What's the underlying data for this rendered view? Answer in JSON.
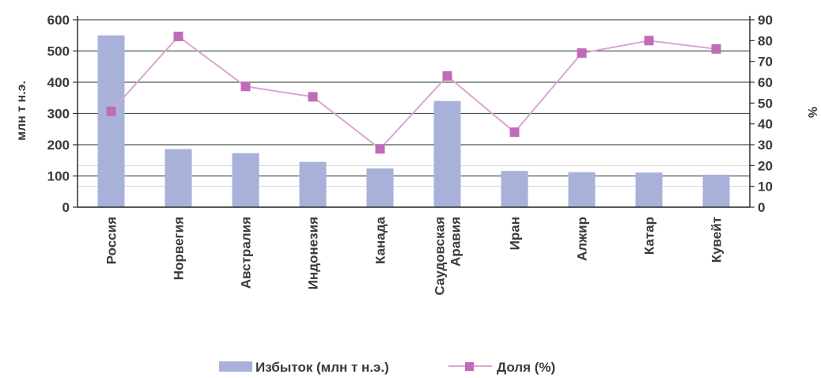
{
  "chart_data": {
    "type": "bar",
    "categories": [
      "Россия",
      "Норвегия",
      "Австралия",
      "Индонезия",
      "Канада",
      "Саудовская Аравия",
      "Иран",
      "Алжир",
      "Катар",
      "Кувейт"
    ],
    "category_lines": [
      [
        "Россия"
      ],
      [
        "Норвегия"
      ],
      [
        "Австралия"
      ],
      [
        "Индонезия"
      ],
      [
        "Канада"
      ],
      [
        "Саудовская",
        "Аравия"
      ],
      [
        "Иран"
      ],
      [
        "Алжир"
      ],
      [
        "Катар"
      ],
      [
        "Кувейт"
      ]
    ],
    "series": [
      {
        "name": "Избыток (млн т н.э.)",
        "type": "bar",
        "axis": "left",
        "values": [
          550,
          186,
          173,
          145,
          124,
          340,
          116,
          112,
          111,
          104
        ]
      },
      {
        "name": "Доля (%)",
        "type": "line",
        "axis": "right",
        "values": [
          46,
          82,
          58,
          53,
          28,
          63,
          36,
          74,
          80,
          76
        ]
      }
    ],
    "ylabel": "млн т н.э.",
    "y2label": "%",
    "ylim": [
      0,
      600
    ],
    "yticks": [
      "0",
      "100",
      "200",
      "300",
      "400",
      "500",
      "600"
    ],
    "y2lim": [
      0,
      90
    ],
    "y2ticks": [
      "0",
      "10",
      "20",
      "30",
      "40",
      "50",
      "60",
      "70",
      "80",
      "90"
    ],
    "grid": true,
    "legend_position": "bottom",
    "colors": {
      "bars": "#a7b1d9",
      "line": "#d9a6d3",
      "marker": "#c06bb8",
      "grid": "#4a5a50",
      "text": "#3a3a3a"
    }
  }
}
